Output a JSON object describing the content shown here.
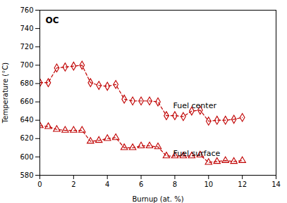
{
  "chart_data": {
    "type": "line",
    "title": "OC",
    "x_label": "Burnup (at. %)",
    "y_label": "Temperature (°C)",
    "x": [
      0.0,
      0.5,
      1.0,
      1.5,
      2.0,
      2.5,
      3.0,
      3.5,
      4.0,
      4.5,
      5.0,
      5.5,
      6.0,
      6.5,
      7.0,
      7.5,
      8.0,
      8.5,
      9.0,
      9.5,
      10.0,
      10.5,
      11.0,
      11.5,
      12.0
    ],
    "series": [
      {
        "color": "#c00000",
        "marker": "diamond",
        "line_style": "dashed",
        "values": [
          681,
          681,
          697,
          698,
          699,
          700,
          681,
          678,
          677,
          679,
          663,
          661,
          661,
          661,
          660,
          645,
          645,
          644,
          650,
          651,
          639,
          640,
          640,
          641,
          643
        ]
      },
      {
        "color": "#c00000",
        "marker": "triangle",
        "line_style": "dashed",
        "values": [
          634,
          633,
          630,
          629,
          629,
          629,
          617,
          618,
          620,
          621,
          610,
          610,
          612,
          612,
          611,
          601,
          601,
          601,
          601,
          602,
          594,
          595,
          596,
          595,
          596
        ]
      }
    ],
    "annotations": [
      {
        "text": "Fuel center",
        "x": 7.9,
        "y": 656
      },
      {
        "text": "Fuel surface",
        "x": 7.9,
        "y": 604
      }
    ],
    "xlim": [
      0,
      14
    ],
    "xticks": [
      0,
      2,
      4,
      6,
      8,
      10,
      12,
      14
    ],
    "ylim": [
      580,
      760
    ],
    "yticks": [
      580,
      600,
      620,
      640,
      660,
      680,
      700,
      720,
      740,
      760
    ],
    "grid": false
  }
}
